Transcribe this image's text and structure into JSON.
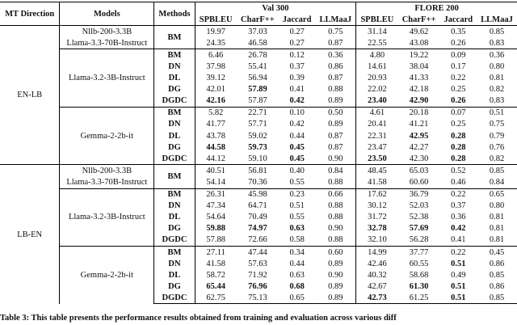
{
  "table": {
    "header": {
      "direction": "MT Direction",
      "models": "Models",
      "methods": "Methods",
      "groups": [
        "Val 300",
        "FLORE 200"
      ],
      "metrics": [
        "SPBLEU",
        "CharF++",
        "Jaccard",
        "LLMaaJ",
        "SPBLEU",
        "CharF++",
        "Jaccard",
        "LLMaaJ"
      ]
    },
    "sections": [
      {
        "direction": "EN-LB",
        "blocks": [
          {
            "models": [
              "Nllb-200-3.3B",
              "Llama-3.3-70B-Instruct"
            ],
            "methods": [
              "BM"
            ],
            "values": [
              [
                "19.97",
                "37.03",
                "0.27",
                "0.75",
                "31.14",
                "49.62",
                "0.35",
                "0.85"
              ],
              [
                "24.35",
                "46.58",
                "0.27",
                "0.87",
                "22.55",
                "43.08",
                "0.26",
                "0.83"
              ]
            ],
            "bold": [
              [],
              []
            ]
          },
          {
            "models": [
              "Llama-3.2-3B-Instruct"
            ],
            "methods": [
              "BM",
              "DN",
              "DL",
              "DG",
              "DGDC"
            ],
            "values": [
              [
                "6.46",
                "26.78",
                "0.12",
                "0.36",
                "4.80",
                "19.22",
                "0.09",
                "0.36"
              ],
              [
                "37.98",
                "55.41",
                "0.37",
                "0.86",
                "14.61",
                "38.04",
                "0.17",
                "0.80"
              ],
              [
                "39.12",
                "56.94",
                "0.39",
                "0.87",
                "20.93",
                "41.33",
                "0.22",
                "0.81"
              ],
              [
                "42.01",
                "57.89",
                "0.41",
                "0.88",
                "22.02",
                "42.18",
                "0.25",
                "0.82"
              ],
              [
                "42.16",
                "57.87",
                "0.42",
                "0.89",
                "23.40",
                "42.90",
                "0.26",
                "0.83"
              ]
            ],
            "bold": [
              [],
              [],
              [],
              [
                1
              ],
              [
                0,
                2,
                4,
                5,
                6
              ]
            ]
          },
          {
            "models": [
              "Gemma-2-2b-it"
            ],
            "methods": [
              "BM",
              "DN",
              "DL",
              "DG",
              "DGDC"
            ],
            "values": [
              [
                "5.82",
                "22.71",
                "0.10",
                "0.50",
                "4.61",
                "20.18",
                "0.07",
                "0.51"
              ],
              [
                "41.77",
                "57.71",
                "0.42",
                "0.89",
                "20.41",
                "41.21",
                "0.25",
                "0.75"
              ],
              [
                "43.78",
                "59.02",
                "0.44",
                "0.87",
                "22.31",
                "42.95",
                "0.28",
                "0.79"
              ],
              [
                "44.58",
                "59.73",
                "0.45",
                "0.87",
                "23.47",
                "42.27",
                "0.28",
                "0.76"
              ],
              [
                "44.12",
                "59.10",
                "0.45",
                "0.90",
                "23.50",
                "42.30",
                "0.28",
                "0.82"
              ]
            ],
            "bold": [
              [],
              [],
              [
                5,
                6
              ],
              [
                0,
                1,
                2,
                6
              ],
              [
                2,
                4,
                6
              ]
            ]
          }
        ]
      },
      {
        "direction": "LB-EN",
        "blocks": [
          {
            "models": [
              "Nllb-200-3.3B",
              "Llama-3.3-70B-Instruct"
            ],
            "methods": [
              "BM"
            ],
            "values": [
              [
                "40.51",
                "56.81",
                "0.40",
                "0.84",
                "48.45",
                "65.03",
                "0.52",
                "0.85"
              ],
              [
                "54.14",
                "70.36",
                "0.55",
                "0.88",
                "41.58",
                "60.60",
                "0.46",
                "0.84"
              ]
            ],
            "bold": [
              [],
              []
            ]
          },
          {
            "models": [
              "Llama-3.2-3B-Instruct"
            ],
            "methods": [
              "BM",
              "DN",
              "DL",
              "DG",
              "DGDC"
            ],
            "values": [
              [
                "26.31",
                "45.98",
                "0.23",
                "0.66",
                "17.62",
                "36.79",
                "0.22",
                "0.65"
              ],
              [
                "47.34",
                "64.71",
                "0.51",
                "0.88",
                "30.12",
                "52.03",
                "0.37",
                "0.80"
              ],
              [
                "54.64",
                "70.49",
                "0.55",
                "0.88",
                "31.72",
                "52.38",
                "0.36",
                "0.81"
              ],
              [
                "59.88",
                "74.97",
                "0.63",
                "0.90",
                "32.78",
                "57.69",
                "0.42",
                "0.81"
              ],
              [
                "57.88",
                "72.66",
                "0.58",
                "0.88",
                "32.10",
                "56.28",
                "0.41",
                "0.81"
              ]
            ],
            "bold": [
              [],
              [],
              [],
              [
                0,
                1,
                2,
                4,
                5,
                6
              ],
              []
            ]
          },
          {
            "models": [
              "Gemma-2-2b-it"
            ],
            "methods": [
              "BM",
              "DN",
              "DL",
              "DG",
              "DGDC"
            ],
            "values": [
              [
                "27.11",
                "47.44",
                "0.34",
                "0.60",
                "14.99",
                "37.77",
                "0.22",
                "0.45"
              ],
              [
                "41.58",
                "57.63",
                "0.44",
                "0.89",
                "42.46",
                "60.55",
                "0.51",
                "0.86"
              ],
              [
                "58.72",
                "71.92",
                "0.63",
                "0.90",
                "40.32",
                "58.68",
                "0.49",
                "0.85"
              ],
              [
                "65.44",
                "76.96",
                "0.68",
                "0.89",
                "42.67",
                "61.30",
                "0.51",
                "0.86"
              ],
              [
                "62.75",
                "75.13",
                "0.65",
                "0.89",
                "42.73",
                "61.25",
                "0.51",
                "0.85"
              ]
            ],
            "bold": [
              [],
              [
                6
              ],
              [],
              [
                0,
                1,
                2,
                5,
                6
              ],
              [
                4,
                6
              ]
            ]
          }
        ]
      }
    ],
    "caption": "Table 3: This table presents the performance results obtained from training and evaluation across various diff"
  }
}
